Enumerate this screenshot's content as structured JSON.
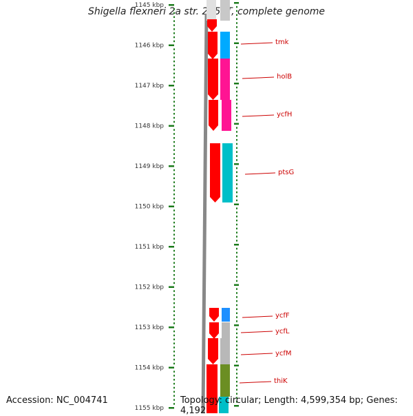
{
  "title": "Shigella flexneri 2a str. 2457T, complete genome",
  "footer": {
    "accession": "Accession: NC_004741",
    "stats": "Topology: circular; Length: 4,599,354 bp; Genes: 4,192"
  },
  "kbp_labels": [
    "1145 kbp",
    "1146 kbp",
    "1147 kbp",
    "1148 kbp",
    "1149 kbp",
    "1150 kbp",
    "1151 kbp",
    "1152 kbp",
    "1153 kbp",
    "1154 kbp",
    "1155 kbp"
  ],
  "genes": [
    {
      "name": "tmk",
      "color": "#00aaff"
    },
    {
      "name": "holB",
      "color": "#ff1493"
    },
    {
      "name": "ycfH",
      "color": "#ff1493"
    },
    {
      "name": "ptsG",
      "color": "#00bfc8"
    },
    {
      "name": "ycfF",
      "color": "#1e90ff"
    },
    {
      "name": "ycfL",
      "color": "#b8b8b8"
    },
    {
      "name": "ycfM",
      "color": "#b8b8b8"
    },
    {
      "name": "thiK",
      "color": "#6b8e23"
    }
  ],
  "colors": {
    "strand": "#ff0000",
    "label": "#cc0000",
    "tick": "#1a7a1a",
    "backbone": "#888888"
  }
}
